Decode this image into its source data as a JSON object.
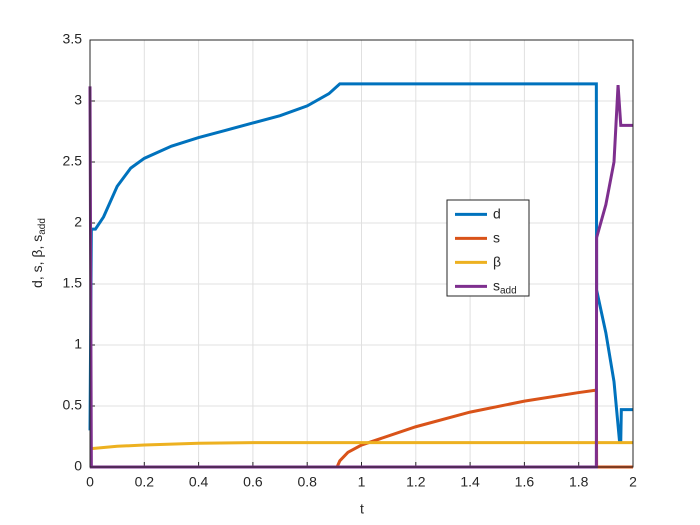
{
  "chart_data": {
    "type": "line",
    "xlabel": "t",
    "ylabel": "d, s, β, s",
    "ylabel_subscript": "add",
    "xlim": [
      0,
      2
    ],
    "ylim": [
      0,
      3.5
    ],
    "xticks": [
      0,
      0.2,
      0.4,
      0.6,
      0.8,
      1,
      1.2,
      1.4,
      1.6,
      1.8,
      2
    ],
    "yticks": [
      0,
      0.5,
      1,
      1.5,
      2,
      2.5,
      3,
      3.5
    ],
    "grid": true,
    "legend": "east",
    "series": [
      {
        "name": "d",
        "color": "#0072bd",
        "x": [
          0,
          0.005,
          0.02,
          0.05,
          0.1,
          0.15,
          0.2,
          0.3,
          0.4,
          0.5,
          0.6,
          0.7,
          0.8,
          0.88,
          0.92,
          1.0,
          1.865,
          1.866,
          1.9,
          1.93,
          1.95,
          1.955,
          1.957,
          2.0
        ],
        "values": [
          0.3,
          1.95,
          1.95,
          2.05,
          2.3,
          2.45,
          2.53,
          2.63,
          2.7,
          2.76,
          2.82,
          2.88,
          2.96,
          3.06,
          3.14,
          3.14,
          3.14,
          1.45,
          1.1,
          0.7,
          0.22,
          0.22,
          0.47,
          0.47
        ]
      },
      {
        "name": "s",
        "color": "#d95319",
        "x": [
          0,
          0.91,
          0.92,
          0.95,
          1.0,
          1.2,
          1.4,
          1.6,
          1.8,
          1.865,
          1.866,
          2.0
        ],
        "values": [
          0,
          0,
          0.05,
          0.12,
          0.18,
          0.33,
          0.45,
          0.54,
          0.61,
          0.63,
          0,
          0
        ]
      },
      {
        "name": "β",
        "color": "#edb120",
        "x": [
          0,
          0.1,
          0.2,
          0.4,
          0.6,
          1.0,
          2.0
        ],
        "values": [
          0.15,
          0.17,
          0.18,
          0.195,
          0.2,
          0.2,
          0.2
        ]
      },
      {
        "name": "s",
        "subscript": "add",
        "color": "#7e2f8e",
        "x": [
          0,
          0.005,
          1.865,
          1.866,
          1.9,
          1.93,
          1.945,
          1.955,
          2.0
        ],
        "values": [
          3.12,
          0,
          0,
          1.88,
          2.15,
          2.5,
          3.13,
          2.8,
          2.8
        ]
      }
    ]
  }
}
